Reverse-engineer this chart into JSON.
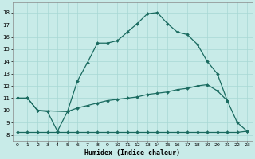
{
  "xlabel": "Humidex (Indice chaleur)",
  "background_color": "#c8ebe8",
  "grid_color": "#a8d8d4",
  "line_color": "#1a6b60",
  "curve1_x": [
    0,
    1,
    2,
    5,
    6,
    7,
    8,
    9,
    10,
    11,
    12,
    13,
    14,
    15,
    16,
    17,
    18,
    19,
    20,
    21,
    22,
    23
  ],
  "curve1_y": [
    11,
    11,
    10,
    9.9,
    12.4,
    13.9,
    15.5,
    15.5,
    15.7,
    16.4,
    17.1,
    17.9,
    18.0,
    17.1,
    16.4,
    16.2,
    15.4,
    14.0,
    13.0,
    10.8,
    9.0,
    8.3
  ],
  "curve2_x": [
    0,
    1,
    2,
    3,
    4,
    5,
    6,
    7,
    8,
    9,
    10,
    11,
    12,
    13,
    14,
    15,
    16,
    17,
    18,
    19,
    20,
    21
  ],
  "curve2_y": [
    11,
    11,
    10,
    9.9,
    8.3,
    9.9,
    10.2,
    10.4,
    10.6,
    10.8,
    10.9,
    11.0,
    11.1,
    11.3,
    11.4,
    11.5,
    11.7,
    11.8,
    12.0,
    12.1,
    11.6,
    10.8
  ],
  "curve3_x": [
    0,
    1,
    2,
    3,
    4,
    5,
    6,
    7,
    8,
    9,
    10,
    11,
    12,
    13,
    14,
    15,
    16,
    17,
    18,
    19,
    20,
    21,
    22,
    23
  ],
  "curve3_y": [
    8.2,
    8.2,
    8.2,
    8.2,
    8.2,
    8.2,
    8.2,
    8.2,
    8.2,
    8.2,
    8.2,
    8.2,
    8.2,
    8.2,
    8.2,
    8.2,
    8.2,
    8.2,
    8.2,
    8.2,
    8.2,
    8.2,
    8.2,
    8.3
  ],
  "ylim": [
    7.5,
    18.8
  ],
  "xlim": [
    -0.5,
    23.5
  ],
  "yticks": [
    8,
    9,
    10,
    11,
    12,
    13,
    14,
    15,
    16,
    17,
    18
  ],
  "xticks": [
    0,
    1,
    2,
    3,
    4,
    5,
    6,
    7,
    8,
    9,
    10,
    11,
    12,
    13,
    14,
    15,
    16,
    17,
    18,
    19,
    20,
    21,
    22,
    23
  ],
  "xticklabels": [
    "0",
    "1",
    "2",
    "3",
    "4",
    "5",
    "6",
    "7",
    "8",
    "9",
    "10",
    "11",
    "12",
    "13",
    "14",
    "15",
    "16",
    "17",
    "18",
    "19",
    "20",
    "21",
    "22",
    "23"
  ]
}
